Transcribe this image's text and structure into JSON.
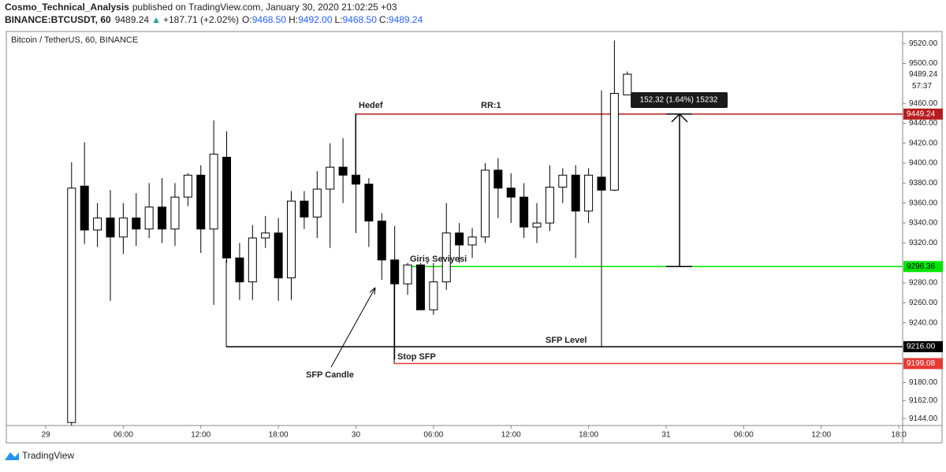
{
  "header": {
    "author": "Cosmo_Technical_Analysis",
    "published": "published on TradingView.com, January 30, 2020 21:02:25 +03",
    "symbol": "BINANCE:BTCUSDT, 60",
    "last": "9489.24",
    "arrow": "▲",
    "change": "+187.71 (+2.02%)",
    "ohlc": [
      {
        "key": "O:",
        "value": "9468.50"
      },
      {
        "key": "H:",
        "value": "9492.00"
      },
      {
        "key": "L:",
        "value": "9468.50"
      },
      {
        "key": "C:",
        "value": "9489.24"
      }
    ]
  },
  "chart_data": {
    "type": "candlestick",
    "title": "Bitcoin / TetherUS, 60, BINANCE",
    "x": [
      2,
      3,
      4,
      5,
      6,
      7,
      8,
      9,
      10,
      11,
      12,
      13,
      14,
      15,
      16,
      17,
      18,
      19,
      20,
      21,
      22,
      23,
      24,
      25,
      26,
      27,
      28,
      29,
      30,
      31,
      32,
      33,
      34,
      35,
      36,
      37,
      38,
      39,
      40,
      41,
      42,
      43,
      44,
      45
    ],
    "open": [
      9140,
      9377,
      9333,
      9345,
      9326,
      9345,
      9334,
      9356,
      9334,
      9366,
      9388,
      9334,
      9406,
      9305,
      9281,
      9325,
      9330,
      9285,
      9362,
      9346,
      9374,
      9396,
      9388,
      9379,
      9342,
      9303,
      9279,
      9298,
      9253,
      9281,
      9330,
      9318,
      9326,
      9393,
      9375,
      9366,
      9336,
      9340,
      9376,
      9388,
      9352,
      9386,
      9373,
      9468.5
    ],
    "high": [
      9401,
      9421,
      9360,
      9373,
      9360,
      9370,
      9380,
      9385,
      9380,
      9390,
      9398,
      9443,
      9432,
      9320,
      9338,
      9347,
      9345,
      9372,
      9372,
      9392,
      9420,
      9425,
      9450,
      9385,
      9350,
      9337,
      9300,
      9300,
      9300,
      9360,
      9340,
      9335,
      9400,
      9405,
      9390,
      9380,
      9360,
      9398,
      9395,
      9398,
      9395,
      9473,
      9523,
      9492
    ],
    "low": [
      9137,
      9319,
      9316,
      9262,
      9309,
      9317,
      9325,
      9320,
      9317,
      9357,
      9310,
      9258,
      9300,
      9263,
      9263,
      9315,
      9262,
      9263,
      9334,
      9325,
      9315,
      9360,
      9330,
      9316,
      9283,
      9203,
      9268,
      9253,
      9248,
      9273,
      9300,
      9305,
      9320,
      9345,
      9340,
      9325,
      9320,
      9332,
      9360,
      9305,
      9340,
      9216,
      9372,
      9468.5
    ],
    "close": [
      9375,
      9333,
      9345,
      9326,
      9345,
      9334,
      9356,
      9334,
      9366,
      9388,
      9334,
      9409,
      9305,
      9281,
      9325,
      9330,
      9285,
      9362,
      9346,
      9374,
      9396,
      9388,
      9379,
      9342,
      9303,
      9279,
      9298,
      9253,
      9281,
      9330,
      9318,
      9326,
      9393,
      9375,
      9366,
      9336,
      9340,
      9376,
      9388,
      9352,
      9388,
      9373,
      9470,
      9489.24
    ],
    "up_color": "#ffffff",
    "down_color": "#000000",
    "xlim": [
      -3.05,
      66.3
    ],
    "xticks": [
      {
        "value": 0,
        "label": "29"
      },
      {
        "value": 6,
        "label": "06:00"
      },
      {
        "value": 12,
        "label": "12:00"
      },
      {
        "value": 18,
        "label": "18:00"
      },
      {
        "value": 24,
        "label": "30"
      },
      {
        "value": 30,
        "label": "06:00"
      },
      {
        "value": 36,
        "label": "12:00"
      },
      {
        "value": 42,
        "label": "18:00"
      },
      {
        "value": 48,
        "label": "31"
      },
      {
        "value": 54,
        "label": "06:00"
      },
      {
        "value": 60,
        "label": "12:00"
      },
      {
        "value": 66,
        "label": "18:0"
      }
    ],
    "ylim": [
      9137,
      9532
    ],
    "yticks": [
      {
        "value": 9144,
        "label": "9144.00"
      },
      {
        "value": 9162,
        "label": "9162.00"
      },
      {
        "value": 9180,
        "label": "9180.00"
      },
      {
        "value": 9240,
        "label": "9240.00"
      },
      {
        "value": 9260,
        "label": "9260.00"
      },
      {
        "value": 9280,
        "label": "9280.00"
      },
      {
        "value": 9320,
        "label": "9320.00"
      },
      {
        "value": 9340,
        "label": "9340.00"
      },
      {
        "value": 9360,
        "label": "9360.00"
      },
      {
        "value": 9380,
        "label": "9380.00"
      },
      {
        "value": 9400,
        "label": "9400.00"
      },
      {
        "value": 9420,
        "label": "9420.00"
      },
      {
        "value": 9440,
        "label": "9440.00"
      },
      {
        "value": 9460,
        "label": "9460.00"
      },
      {
        "value": 9500,
        "label": "9500.00"
      },
      {
        "value": 9520,
        "label": "9520.00"
      }
    ],
    "levels": [
      {
        "value": 9449.24,
        "color": "#b71c1c",
        "text_color": "#ffffff"
      },
      {
        "value": 9296.36,
        "color": "#00e600",
        "text_color": "#000000"
      },
      {
        "value": 9216,
        "label": "9216.00",
        "color": "#000000",
        "text_color": "#ffffff"
      },
      {
        "value": 9199.08,
        "color": "#e53935",
        "text_color": "#ffffff"
      }
    ],
    "last_price": 9489.24,
    "countdown": "57:37",
    "annotations": [
      "Hedef",
      "RR:1",
      "Giriş Seviyesi",
      "Stop SFP",
      "SFP Level",
      "SFP Candle"
    ],
    "measure": "152.32 (1.64%) 15232",
    "brand": "TradingView"
  }
}
